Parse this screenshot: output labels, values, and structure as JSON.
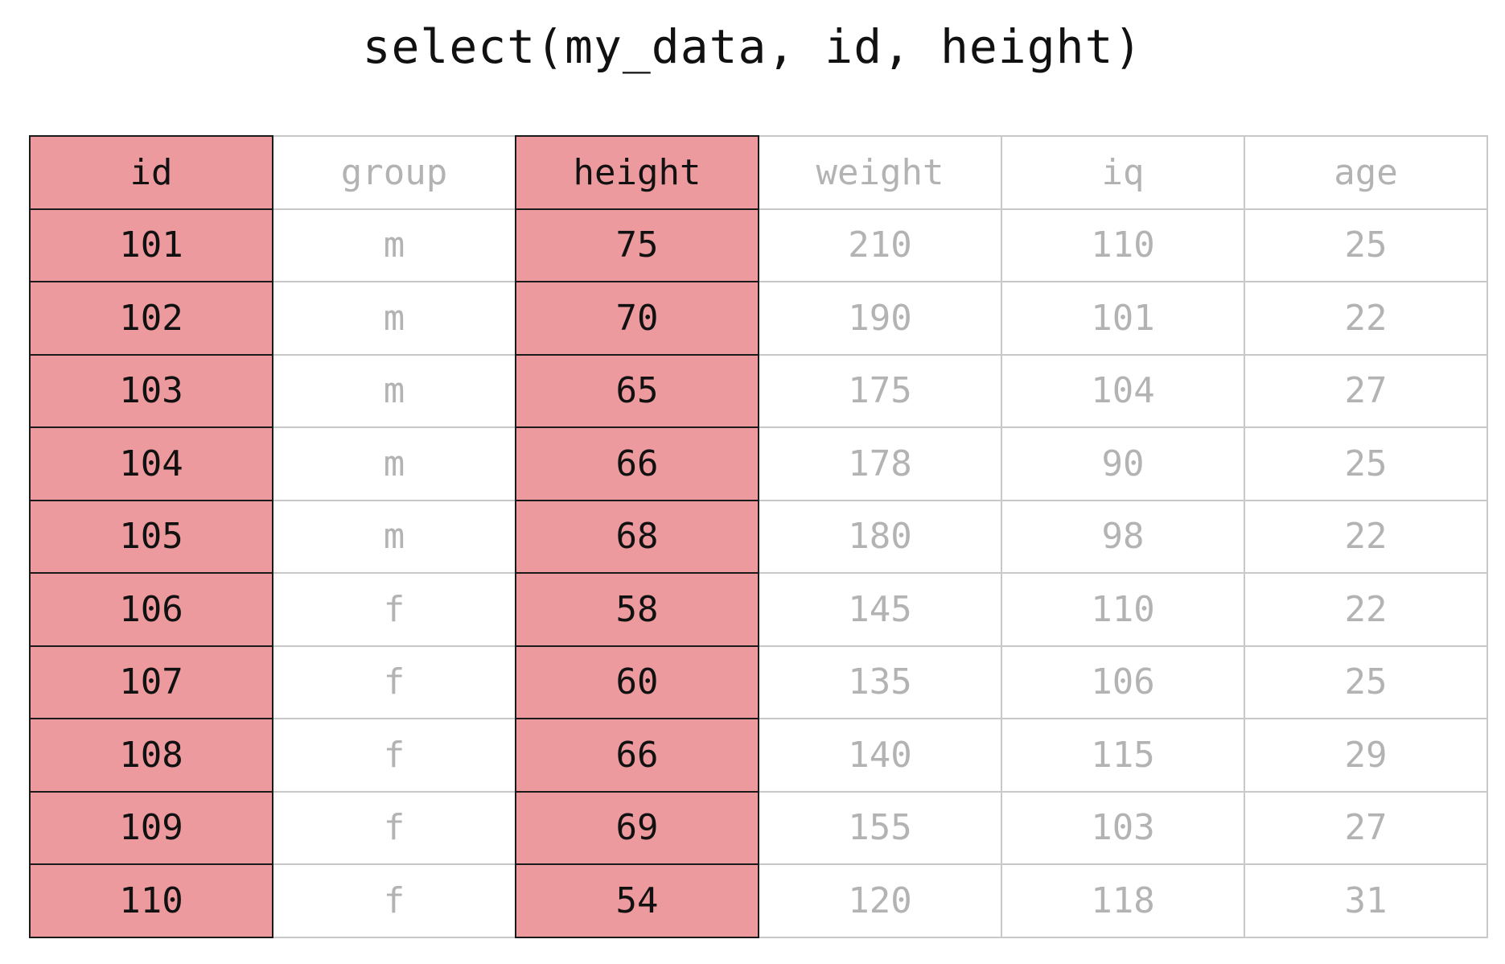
{
  "title": "select(my_data, id, height)",
  "colors": {
    "selected_fill": "#ec9a9e",
    "selected_text": "#111111",
    "unselected_text": "#b3b3b3",
    "unselected_border": "#c8c8c8"
  },
  "table": {
    "columns": [
      "id",
      "group",
      "height",
      "weight",
      "iq",
      "age"
    ],
    "selected_columns": [
      "id",
      "height"
    ],
    "rows": [
      [
        "101",
        "m",
        "75",
        "210",
        "110",
        "25"
      ],
      [
        "102",
        "m",
        "70",
        "190",
        "101",
        "22"
      ],
      [
        "103",
        "m",
        "65",
        "175",
        "104",
        "27"
      ],
      [
        "104",
        "m",
        "66",
        "178",
        "90",
        "25"
      ],
      [
        "105",
        "m",
        "68",
        "180",
        "98",
        "22"
      ],
      [
        "106",
        "f",
        "58",
        "145",
        "110",
        "22"
      ],
      [
        "107",
        "f",
        "60",
        "135",
        "106",
        "25"
      ],
      [
        "108",
        "f",
        "66",
        "140",
        "115",
        "29"
      ],
      [
        "109",
        "f",
        "69",
        "155",
        "103",
        "27"
      ],
      [
        "110",
        "f",
        "54",
        "120",
        "118",
        "31"
      ]
    ]
  }
}
